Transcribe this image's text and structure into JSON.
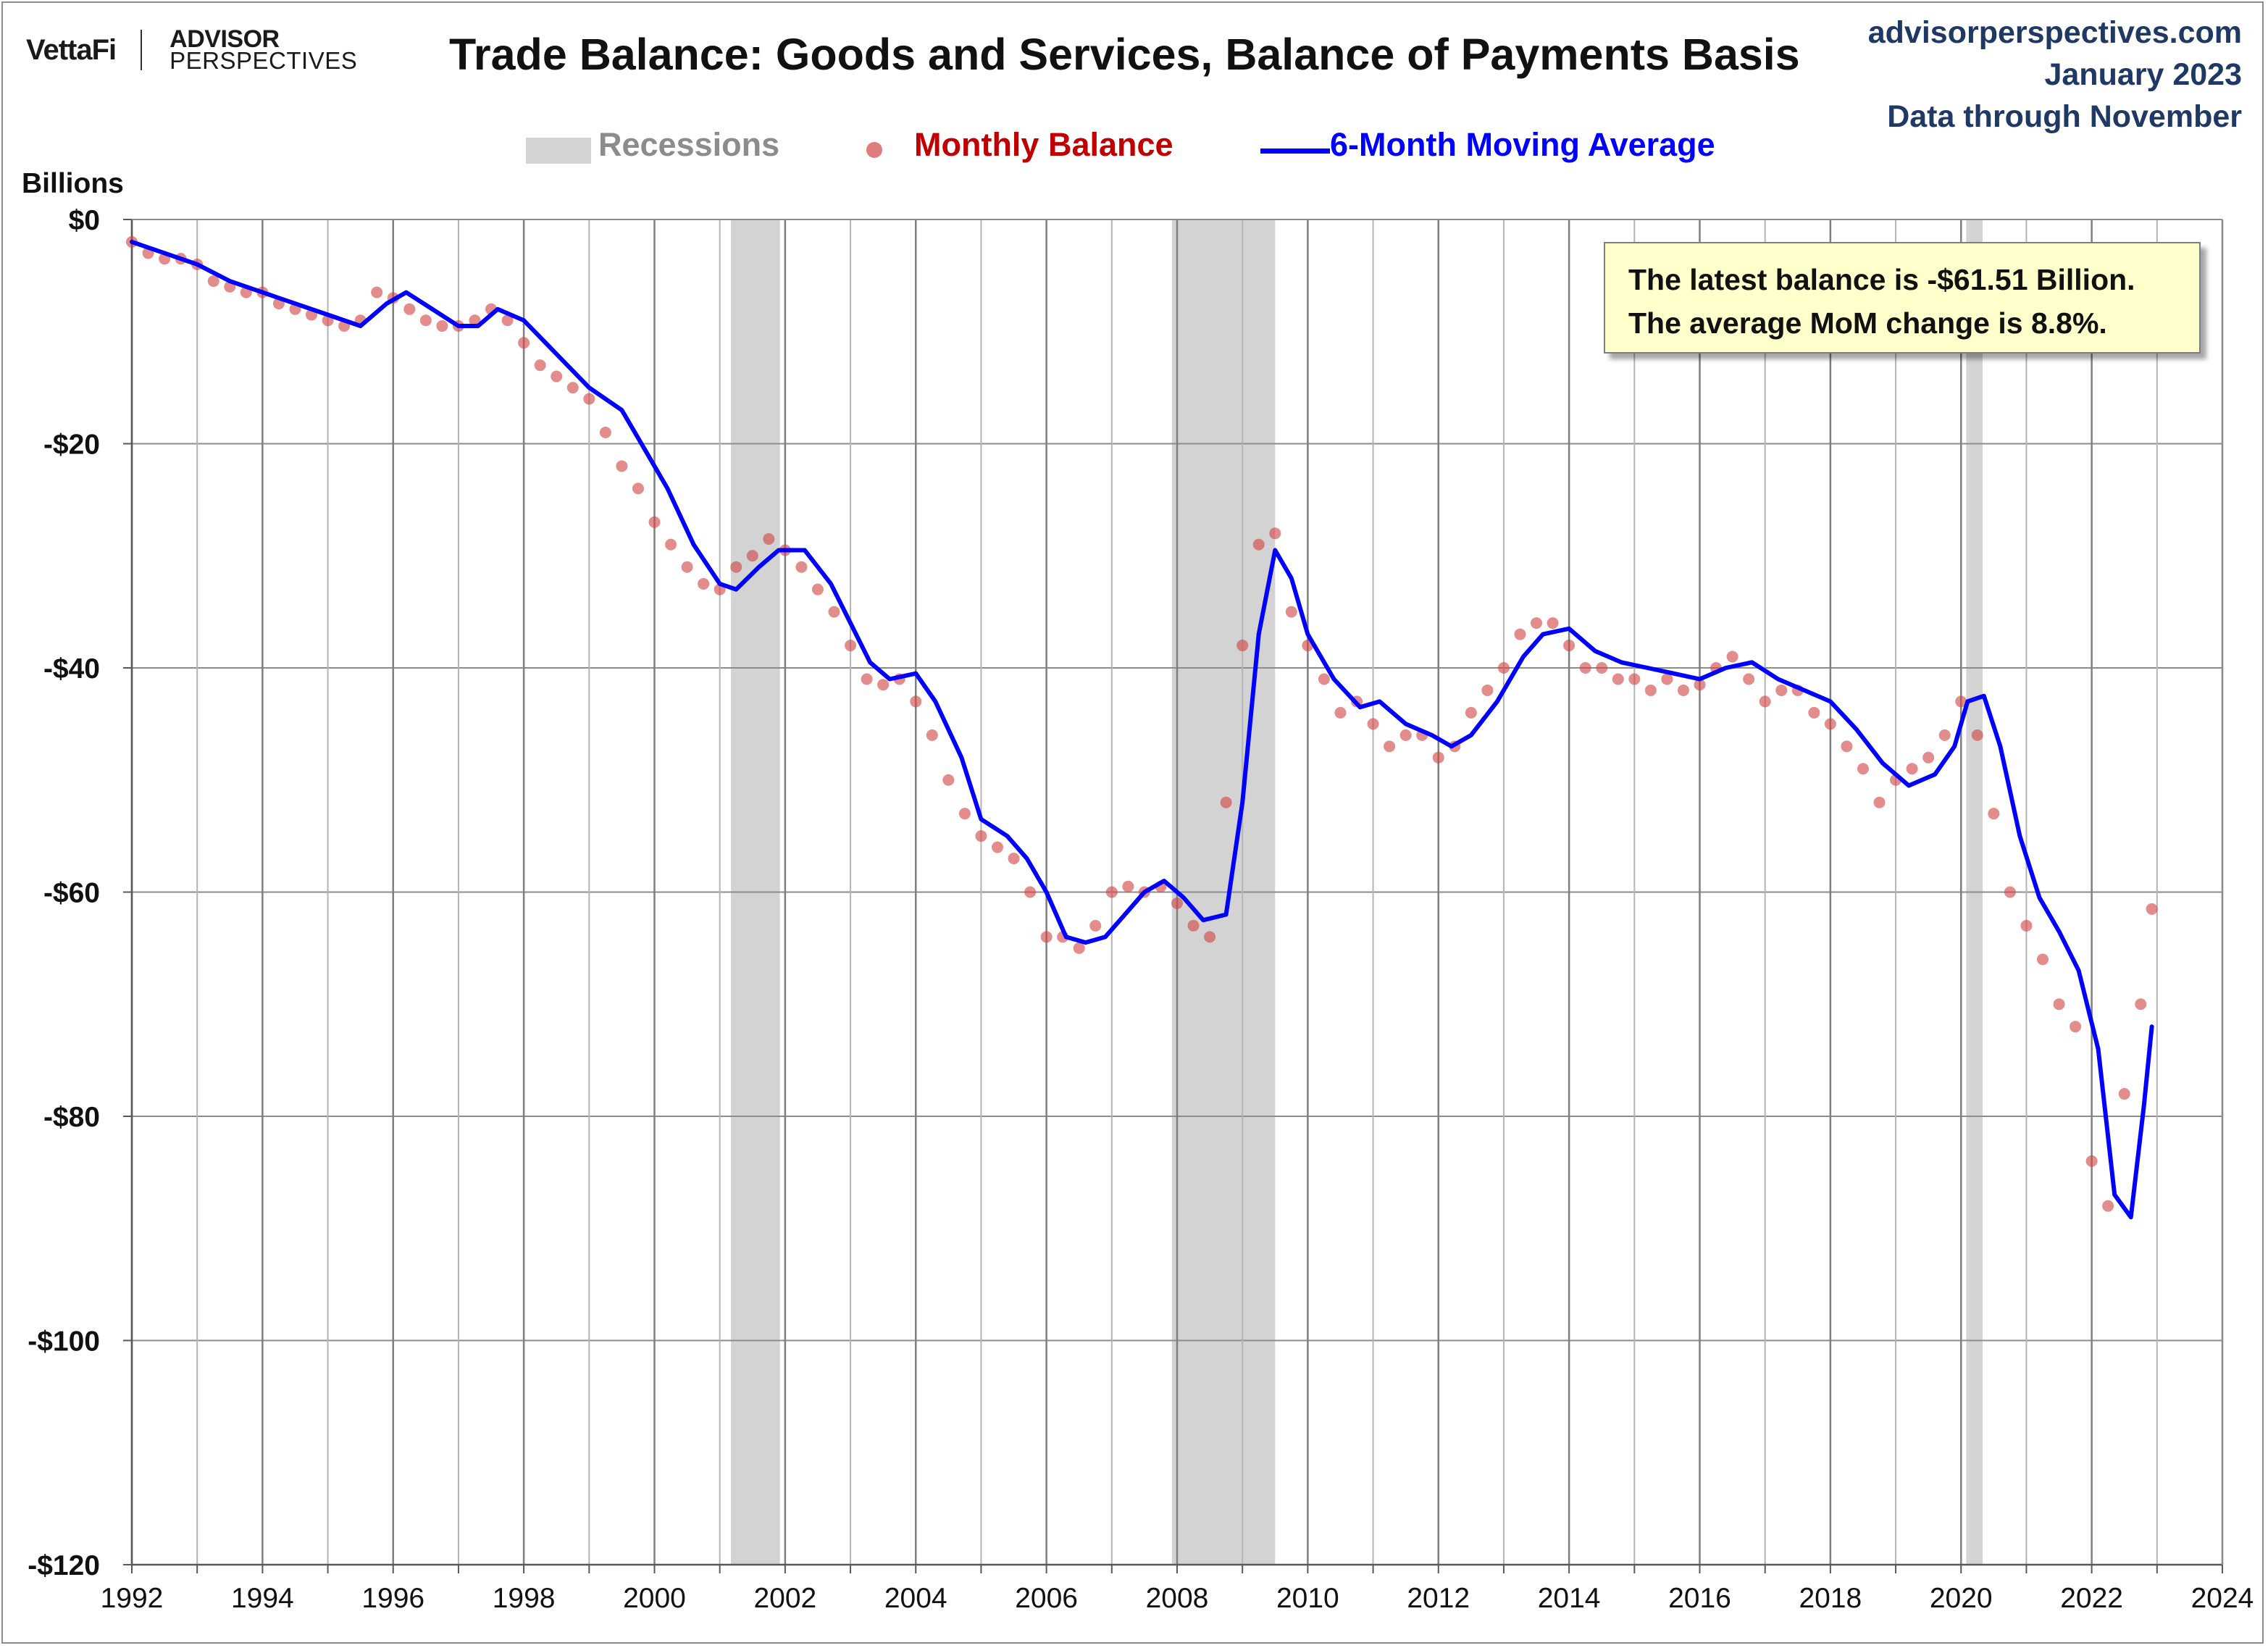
{
  "header": {
    "logo_primary": "VettaFi",
    "logo_secondary_line1": "ADVISOR",
    "logo_secondary_line2": "PERSPECTIVES",
    "title": "Trade Balance: Goods and Services, Balance of Payments Basis",
    "source_site": "advisorperspectives.com",
    "source_date": "January 2023",
    "source_note": "Data through November"
  },
  "legend": {
    "recessions": "Recessions",
    "monthly": "Monthly Balance",
    "moving_avg": "6-Month Moving Average"
  },
  "annotation": {
    "line1": "The latest balance is -$61.51 Billion.",
    "line2": "The average MoM change is 8.8%."
  },
  "colors": {
    "monthly": "#d24646",
    "moving_avg": "#0000ff",
    "recession": "#d3d3d3",
    "grid": "#8c8c8c",
    "source": "#1f3864"
  },
  "chart_data": {
    "type": "scatter",
    "title": "Trade Balance: Goods and Services, Balance of Payments Basis",
    "ylabel": "Billions",
    "xlabel": "",
    "xlim": [
      1992,
      2024
    ],
    "ylim": [
      -120,
      0
    ],
    "x_ticks": [
      "1992",
      "1994",
      "1996",
      "1998",
      "2000",
      "2002",
      "2004",
      "2006",
      "2008",
      "2010",
      "2012",
      "2014",
      "2016",
      "2018",
      "2020",
      "2022",
      "2024"
    ],
    "y_ticks": [
      {
        "value": 0,
        "label": "$0"
      },
      {
        "value": -20,
        "label": "-$20"
      },
      {
        "value": -40,
        "label": "-$40"
      },
      {
        "value": -60,
        "label": "-$60"
      },
      {
        "value": -80,
        "label": "-$80"
      },
      {
        "value": -100,
        "label": "-$100"
      },
      {
        "value": -120,
        "label": "-$120"
      }
    ],
    "grid": true,
    "legend_position": "top-center",
    "recessions": [
      [
        2001.17,
        2001.92
      ],
      [
        2007.92,
        2009.5
      ],
      [
        2020.08,
        2020.33
      ]
    ],
    "series": [
      {
        "name": "Monthly Balance",
        "style": "markers",
        "points": [
          [
            1992.0,
            -2
          ],
          [
            1992.25,
            -3
          ],
          [
            1992.5,
            -3.5
          ],
          [
            1992.75,
            -3.5
          ],
          [
            1993.0,
            -4
          ],
          [
            1993.25,
            -5.5
          ],
          [
            1993.5,
            -6
          ],
          [
            1993.75,
            -6.5
          ],
          [
            1994.0,
            -6.5
          ],
          [
            1994.25,
            -7.5
          ],
          [
            1994.5,
            -8
          ],
          [
            1994.75,
            -8.5
          ],
          [
            1995.0,
            -9
          ],
          [
            1995.25,
            -9.5
          ],
          [
            1995.5,
            -9
          ],
          [
            1995.75,
            -6.5
          ],
          [
            1996.0,
            -7
          ],
          [
            1996.25,
            -8
          ],
          [
            1996.5,
            -9
          ],
          [
            1996.75,
            -9.5
          ],
          [
            1997.0,
            -9.5
          ],
          [
            1997.25,
            -9
          ],
          [
            1997.5,
            -8
          ],
          [
            1997.75,
            -9
          ],
          [
            1998.0,
            -11
          ],
          [
            1998.25,
            -13
          ],
          [
            1998.5,
            -14
          ],
          [
            1998.75,
            -15
          ],
          [
            1999.0,
            -16
          ],
          [
            1999.25,
            -19
          ],
          [
            1999.5,
            -22
          ],
          [
            1999.75,
            -24
          ],
          [
            2000.0,
            -27
          ],
          [
            2000.25,
            -29
          ],
          [
            2000.5,
            -31
          ],
          [
            2000.75,
            -32.5
          ],
          [
            2001.0,
            -33
          ],
          [
            2001.25,
            -31
          ],
          [
            2001.5,
            -30
          ],
          [
            2001.75,
            -28.5
          ],
          [
            2002.0,
            -29.5
          ],
          [
            2002.25,
            -31
          ],
          [
            2002.5,
            -33
          ],
          [
            2002.75,
            -35
          ],
          [
            2003.0,
            -38
          ],
          [
            2003.25,
            -41
          ],
          [
            2003.5,
            -41.5
          ],
          [
            2003.75,
            -41
          ],
          [
            2004.0,
            -43
          ],
          [
            2004.25,
            -46
          ],
          [
            2004.5,
            -50
          ],
          [
            2004.75,
            -53
          ],
          [
            2005.0,
            -55
          ],
          [
            2005.25,
            -56
          ],
          [
            2005.5,
            -57
          ],
          [
            2005.75,
            -60
          ],
          [
            2006.0,
            -64
          ],
          [
            2006.25,
            -64
          ],
          [
            2006.5,
            -65
          ],
          [
            2006.75,
            -63
          ],
          [
            2007.0,
            -60
          ],
          [
            2007.25,
            -59.5
          ],
          [
            2007.5,
            -60
          ],
          [
            2007.75,
            -59.5
          ],
          [
            2008.0,
            -61
          ],
          [
            2008.25,
            -63
          ],
          [
            2008.5,
            -64
          ],
          [
            2008.75,
            -52
          ],
          [
            2009.0,
            -38
          ],
          [
            2009.25,
            -29
          ],
          [
            2009.5,
            -28
          ],
          [
            2009.75,
            -35
          ],
          [
            2010.0,
            -38
          ],
          [
            2010.25,
            -41
          ],
          [
            2010.5,
            -44
          ],
          [
            2010.75,
            -43
          ],
          [
            2011.0,
            -45
          ],
          [
            2011.25,
            -47
          ],
          [
            2011.5,
            -46
          ],
          [
            2011.75,
            -46
          ],
          [
            2012.0,
            -48
          ],
          [
            2012.25,
            -47
          ],
          [
            2012.5,
            -44
          ],
          [
            2012.75,
            -42
          ],
          [
            2013.0,
            -40
          ],
          [
            2013.25,
            -37
          ],
          [
            2013.5,
            -36
          ],
          [
            2013.75,
            -36
          ],
          [
            2014.0,
            -38
          ],
          [
            2014.25,
            -40
          ],
          [
            2014.5,
            -40
          ],
          [
            2014.75,
            -41
          ],
          [
            2015.0,
            -41
          ],
          [
            2015.25,
            -42
          ],
          [
            2015.5,
            -41
          ],
          [
            2015.75,
            -42
          ],
          [
            2016.0,
            -41.5
          ],
          [
            2016.25,
            -40
          ],
          [
            2016.5,
            -39
          ],
          [
            2016.75,
            -41
          ],
          [
            2017.0,
            -43
          ],
          [
            2017.25,
            -42
          ],
          [
            2017.5,
            -42
          ],
          [
            2017.75,
            -44
          ],
          [
            2018.0,
            -45
          ],
          [
            2018.25,
            -47
          ],
          [
            2018.5,
            -49
          ],
          [
            2018.75,
            -52
          ],
          [
            2019.0,
            -50
          ],
          [
            2019.25,
            -49
          ],
          [
            2019.5,
            -48
          ],
          [
            2019.75,
            -46
          ],
          [
            2020.0,
            -43
          ],
          [
            2020.25,
            -46
          ],
          [
            2020.5,
            -53
          ],
          [
            2020.75,
            -60
          ],
          [
            2021.0,
            -63
          ],
          [
            2021.25,
            -66
          ],
          [
            2021.5,
            -70
          ],
          [
            2021.75,
            -72
          ],
          [
            2022.0,
            -84
          ],
          [
            2022.25,
            -88
          ],
          [
            2022.5,
            -78
          ],
          [
            2022.75,
            -70
          ],
          [
            2022.92,
            -61.51
          ]
        ]
      },
      {
        "name": "6-Month Moving Average",
        "style": "line",
        "points": [
          [
            1992.0,
            -2
          ],
          [
            1992.5,
            -3
          ],
          [
            1993.0,
            -4
          ],
          [
            1993.5,
            -5.5
          ],
          [
            1994.0,
            -6.5
          ],
          [
            1994.5,
            -7.5
          ],
          [
            1995.0,
            -8.5
          ],
          [
            1995.5,
            -9.5
          ],
          [
            1995.9,
            -7.5
          ],
          [
            1996.2,
            -6.5
          ],
          [
            1996.6,
            -8
          ],
          [
            1997.0,
            -9.5
          ],
          [
            1997.3,
            -9.5
          ],
          [
            1997.6,
            -8
          ],
          [
            1998.0,
            -9
          ],
          [
            1998.5,
            -12
          ],
          [
            1999.0,
            -15
          ],
          [
            1999.5,
            -17
          ],
          [
            1999.8,
            -20
          ],
          [
            2000.2,
            -24
          ],
          [
            2000.6,
            -29
          ],
          [
            2001.0,
            -32.5
          ],
          [
            2001.25,
            -33
          ],
          [
            2001.6,
            -31
          ],
          [
            2001.9,
            -29.5
          ],
          [
            2002.3,
            -29.5
          ],
          [
            2002.7,
            -32.5
          ],
          [
            2003.0,
            -36
          ],
          [
            2003.3,
            -39.5
          ],
          [
            2003.6,
            -41
          ],
          [
            2004.0,
            -40.5
          ],
          [
            2004.3,
            -43
          ],
          [
            2004.7,
            -48
          ],
          [
            2005.0,
            -53.5
          ],
          [
            2005.4,
            -55
          ],
          [
            2005.7,
            -57
          ],
          [
            2006.0,
            -60
          ],
          [
            2006.3,
            -64
          ],
          [
            2006.6,
            -64.5
          ],
          [
            2006.9,
            -64
          ],
          [
            2007.2,
            -62
          ],
          [
            2007.5,
            -60
          ],
          [
            2007.8,
            -59
          ],
          [
            2008.1,
            -60.5
          ],
          [
            2008.4,
            -62.5
          ],
          [
            2008.75,
            -62
          ],
          [
            2009.0,
            -52
          ],
          [
            2009.25,
            -37
          ],
          [
            2009.5,
            -29.5
          ],
          [
            2009.75,
            -32
          ],
          [
            2010.0,
            -37
          ],
          [
            2010.4,
            -41
          ],
          [
            2010.8,
            -43.5
          ],
          [
            2011.1,
            -43
          ],
          [
            2011.5,
            -45
          ],
          [
            2011.9,
            -46
          ],
          [
            2012.2,
            -47
          ],
          [
            2012.5,
            -46
          ],
          [
            2012.9,
            -43
          ],
          [
            2013.3,
            -39
          ],
          [
            2013.6,
            -37
          ],
          [
            2014.0,
            -36.5
          ],
          [
            2014.4,
            -38.5
          ],
          [
            2014.8,
            -39.5
          ],
          [
            2015.2,
            -40
          ],
          [
            2015.6,
            -40.5
          ],
          [
            2016.0,
            -41
          ],
          [
            2016.4,
            -40
          ],
          [
            2016.8,
            -39.5
          ],
          [
            2017.2,
            -41
          ],
          [
            2017.6,
            -42
          ],
          [
            2018.0,
            -43
          ],
          [
            2018.4,
            -45.5
          ],
          [
            2018.8,
            -48.5
          ],
          [
            2019.2,
            -50.5
          ],
          [
            2019.6,
            -49.5
          ],
          [
            2019.9,
            -47
          ],
          [
            2020.1,
            -43
          ],
          [
            2020.35,
            -42.5
          ],
          [
            2020.6,
            -47
          ],
          [
            2020.9,
            -55
          ],
          [
            2021.2,
            -60.5
          ],
          [
            2021.5,
            -63.5
          ],
          [
            2021.8,
            -67
          ],
          [
            2022.1,
            -74
          ],
          [
            2022.35,
            -87
          ],
          [
            2022.6,
            -89
          ],
          [
            2022.8,
            -79
          ],
          [
            2022.92,
            -72
          ]
        ]
      }
    ]
  }
}
